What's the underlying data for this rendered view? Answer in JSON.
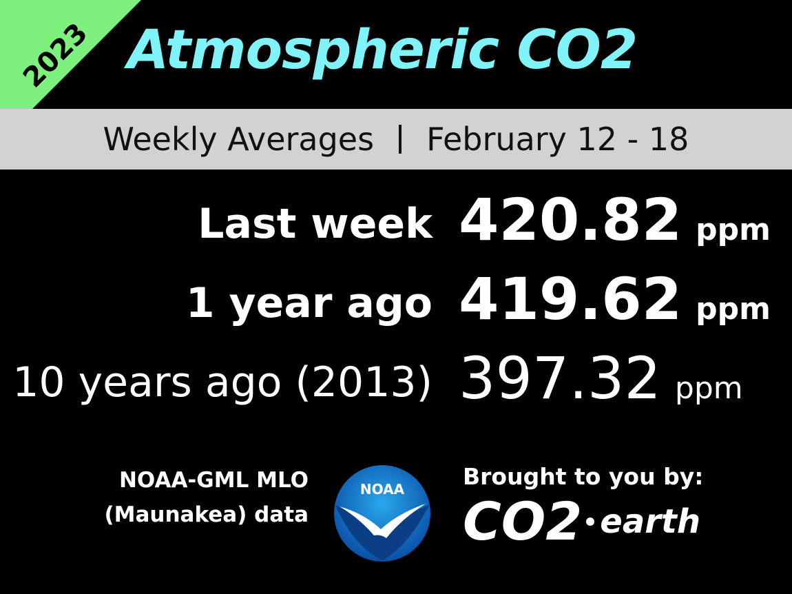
{
  "badge": "2023",
  "title": "Atmospheric CO2",
  "subtitle": {
    "left": "Weekly Averages",
    "right": "February 12 - 18"
  },
  "rows": [
    {
      "label": "Last week",
      "value": 420.82,
      "unit": "ppm"
    },
    {
      "label": "1 year ago",
      "value": 419.62,
      "unit": "ppm"
    },
    {
      "label": "10 years ago (2013)",
      "value": 397.32,
      "unit": "ppm"
    }
  ],
  "footer": {
    "source": [
      "NOAA-GML MLO",
      "(Maunakea) data"
    ],
    "noaa_logo": "NOAA",
    "credit": "Brought to you by:",
    "brand": {
      "left": "CO2",
      "right": "earth"
    }
  }
}
